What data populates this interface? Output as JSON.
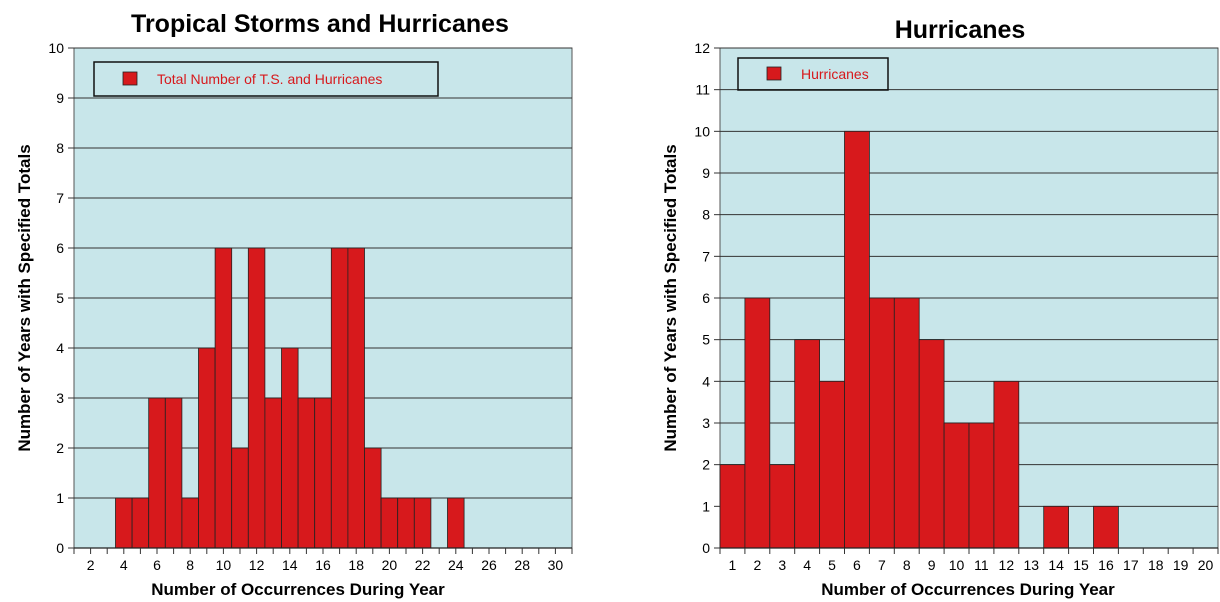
{
  "page": {
    "background": "#ffffff"
  },
  "colors": {
    "plot_bg": "#c8e6ea",
    "bar": "#d7191c",
    "bar_stroke": "#222222",
    "grid": "#333333",
    "legend_text": "#d7191c"
  },
  "chart_data": [
    {
      "type": "bar",
      "title": "Tropical Storms and Hurricanes",
      "xlabel": "Number of Occurrences During Year",
      "ylabel": "Number of Years with Specified Totals",
      "legend": {
        "label": "Total Number of T.S. and Hurricanes",
        "placement": "top-left"
      },
      "xlim": [
        1,
        30
      ],
      "ylim": [
        0,
        10
      ],
      "grid": true,
      "x_ticks": [
        2,
        4,
        6,
        8,
        10,
        12,
        14,
        16,
        18,
        20,
        22,
        24,
        26,
        28,
        30
      ],
      "y_ticks": [
        0,
        1,
        2,
        3,
        4,
        5,
        6,
        7,
        8,
        9,
        10
      ],
      "x": [
        4,
        5,
        6,
        7,
        8,
        9,
        10,
        11,
        12,
        13,
        14,
        15,
        16,
        17,
        18,
        19,
        20,
        21,
        22,
        24
      ],
      "values": [
        1,
        1,
        3,
        3,
        1,
        4,
        6,
        2,
        6,
        3,
        4,
        3,
        3,
        6,
        6,
        2,
        1,
        1,
        1,
        1
      ]
    },
    {
      "type": "bar",
      "title": "Hurricanes",
      "xlabel": "Number of Occurrences During Year",
      "ylabel": "Number of Years with Specified Totals",
      "legend": {
        "label": "Hurricanes",
        "placement": "top-left"
      },
      "xlim": [
        1,
        20
      ],
      "ylim": [
        0,
        12
      ],
      "grid": true,
      "x_ticks": [
        1,
        2,
        3,
        4,
        5,
        6,
        7,
        8,
        9,
        10,
        11,
        12,
        13,
        14,
        15,
        16,
        17,
        18,
        19,
        20
      ],
      "y_ticks": [
        0,
        1,
        2,
        3,
        4,
        5,
        6,
        7,
        8,
        9,
        10,
        11,
        12
      ],
      "x": [
        1,
        2,
        3,
        4,
        5,
        6,
        7,
        8,
        9,
        10,
        11,
        12,
        14,
        16
      ],
      "values": [
        2,
        6,
        2,
        5,
        4,
        10,
        6,
        6,
        5,
        3,
        3,
        4,
        1,
        1
      ]
    }
  ]
}
